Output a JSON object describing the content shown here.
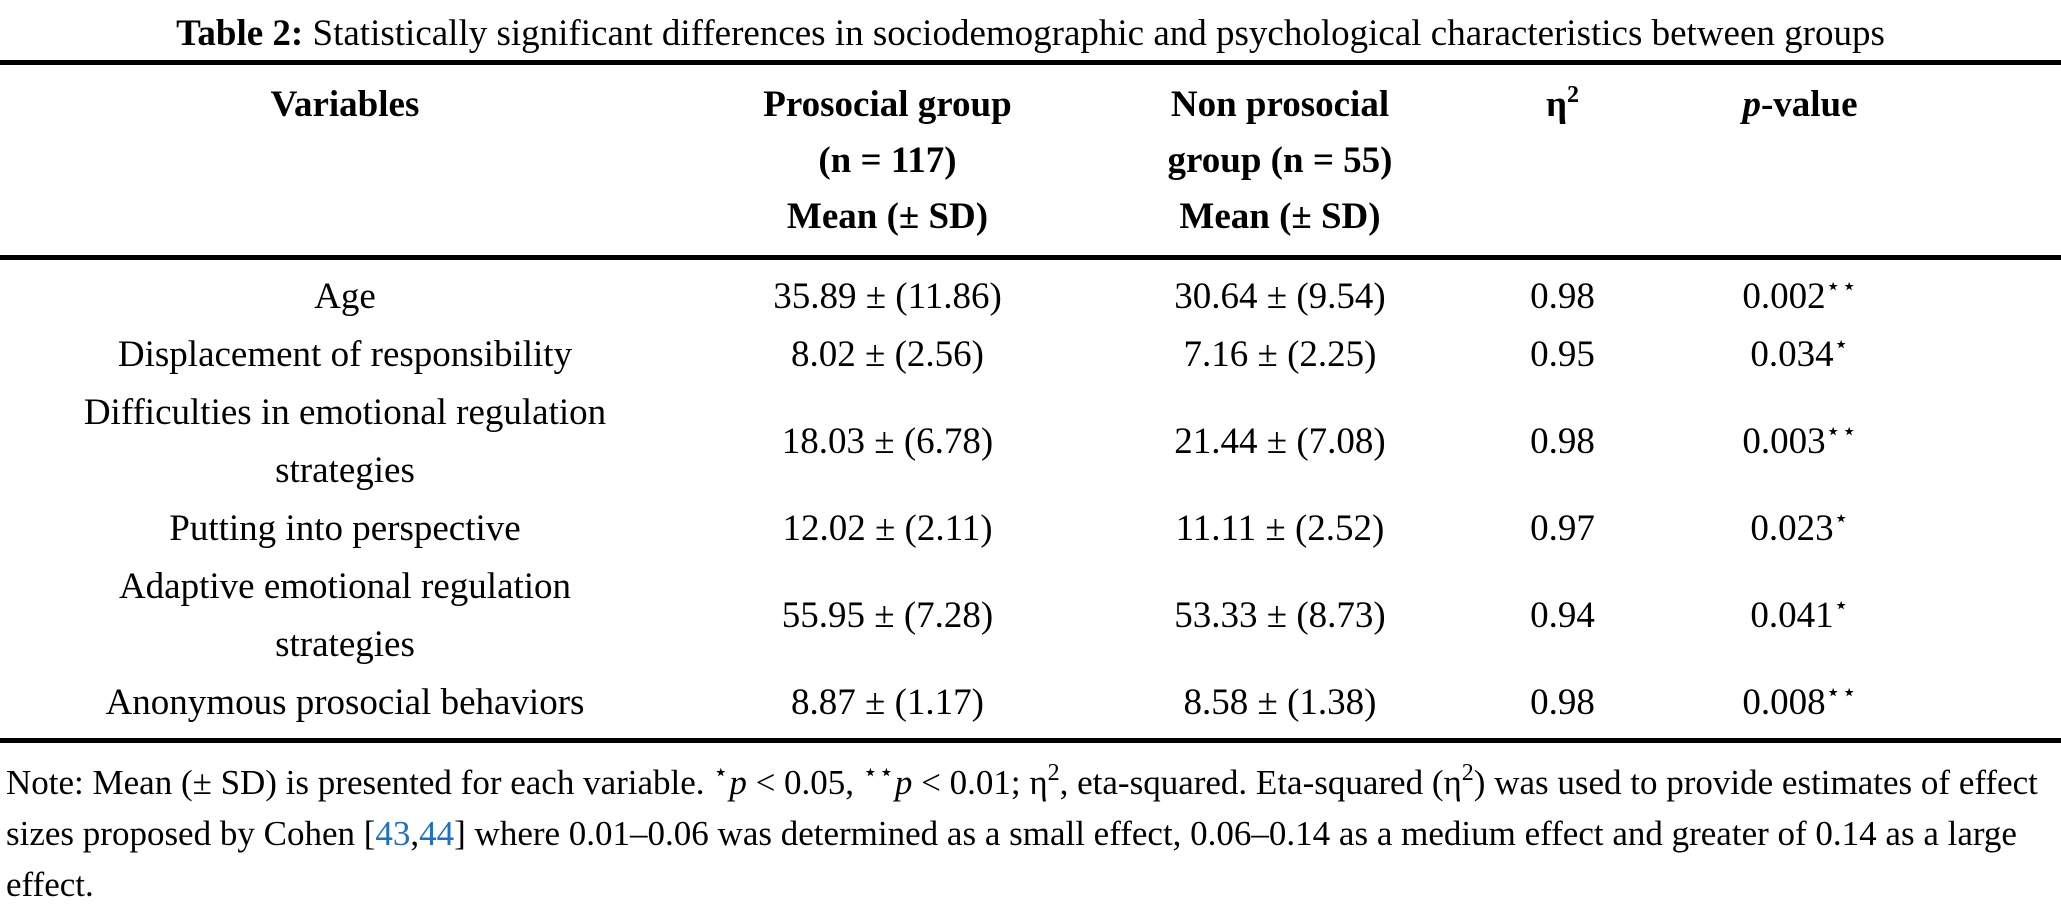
{
  "page": {
    "background": "#ffffff",
    "text_color": "#000000",
    "link_color": "#1d70c5"
  },
  "caption": {
    "label": "Table 2:",
    "text": " Statistically significant differences in sociodemographic and psychological characteristics between groups"
  },
  "table": {
    "headers": {
      "variables": "Variables",
      "group1_line1": "Prosocial group",
      "group1_line2": "(n = 117)",
      "group1_line3": "Mean (± SD)",
      "group2_line1": "Non prosocial",
      "group2_line2": "group (n = 55)",
      "group2_line3": "Mean (± SD)",
      "eta_base": "η",
      "eta_sup": "2",
      "p_italic": "p",
      "p_rest": "-value"
    },
    "rows": [
      {
        "variable": "Age",
        "prosocial": "35.89 ± (11.86)",
        "non_prosocial": "30.64 ± (9.54)",
        "eta": "0.98",
        "p": "0.002",
        "stars": "⋆⋆"
      },
      {
        "variable": "Displacement of responsibility",
        "prosocial": "8.02 ± (2.56)",
        "non_prosocial": "7.16 ± (2.25)",
        "eta": "0.95",
        "p": "0.034",
        "stars": "⋆"
      },
      {
        "variable": "Difficulties in emotional regulation strategies",
        "prosocial": "18.03 ± (6.78)",
        "non_prosocial": "21.44 ± (7.08)",
        "eta": "0.98",
        "p": "0.003",
        "stars": "⋆⋆"
      },
      {
        "variable": "Putting into perspective",
        "prosocial": "12.02 ± (2.11)",
        "non_prosocial": "11.11 ± (2.52)",
        "eta": "0.97",
        "p": "0.023",
        "stars": "⋆"
      },
      {
        "variable": "Adaptive emotional regulation strategies",
        "prosocial": "55.95 ± (7.28)",
        "non_prosocial": "53.33 ± (8.73)",
        "eta": "0.94",
        "p": "0.041",
        "stars": "⋆"
      },
      {
        "variable": "Anonymous prosocial behaviors",
        "prosocial": "8.87 ± (1.17)",
        "non_prosocial": "8.58 ± (1.38)",
        "eta": "0.98",
        "p": "0.008",
        "stars": "⋆⋆"
      }
    ]
  },
  "note": {
    "seg1": "Note: Mean (± SD) is presented for each variable. ",
    "star1": "⋆",
    "p1": "p",
    "seg2": " < 0.05, ",
    "star2": "⋆⋆",
    "p2": "p",
    "seg3": " < 0.01; η",
    "sup1": "2",
    "seg4": ", eta-squared. Eta-squared (η",
    "sup2": "2",
    "seg5": ") was used to provide estimates of effect sizes proposed by Cohen [",
    "ref1": "43",
    "comma": ",",
    "ref2": "44",
    "seg6": "] where 0.01–0.06 was determined as a small effect, 0.06–0.14 as a medium effect and greater of 0.14 as a large effect."
  }
}
